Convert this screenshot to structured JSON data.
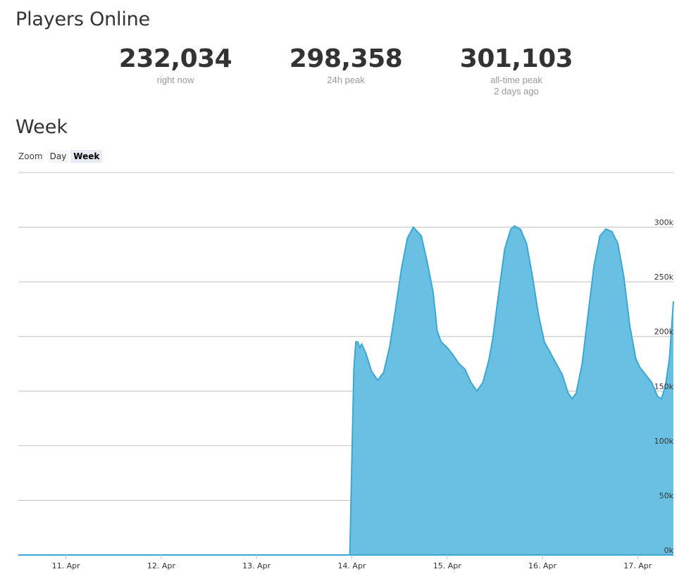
{
  "header": {
    "title": "Players Online"
  },
  "stats": [
    {
      "value": "232,034",
      "label": "right now",
      "sublabel": ""
    },
    {
      "value": "298,358",
      "label": "24h peak",
      "sublabel": ""
    },
    {
      "value": "301,103",
      "label": "all-time peak",
      "sublabel": "2 days ago"
    }
  ],
  "section": {
    "title": "Week"
  },
  "zoom": {
    "label": "Zoom",
    "options": [
      "Day",
      "Week"
    ],
    "selected": "Week"
  },
  "colors": {
    "area": "#6ac0e2",
    "line": "#3aa8d2",
    "grid": "#c0c0c0"
  },
  "chart_data": {
    "type": "area",
    "title": "",
    "xlabel": "",
    "ylabel": "",
    "x_ticks": [
      "11. Apr",
      "12. Apr",
      "13. Apr",
      "14. Apr",
      "15. Apr",
      "16. Apr",
      "17. Apr"
    ],
    "y_ticks": [
      "0k",
      "50k",
      "100k",
      "150k",
      "200k",
      "250k",
      "300k"
    ],
    "ylim": [
      0,
      350000
    ],
    "xlim": [
      "2017-04-10 12:00",
      "2017-04-17 09:00"
    ],
    "grid": true,
    "series": [
      {
        "name": "",
        "points": [
          [
            "2017-04-10 12:00",
            0
          ],
          [
            "2017-04-13 23:30",
            0
          ],
          [
            "2017-04-14 00:30",
            170000
          ],
          [
            "2017-04-14 01:00",
            195000
          ],
          [
            "2017-04-14 01:30",
            195000
          ],
          [
            "2017-04-14 02:00",
            190000
          ],
          [
            "2017-04-14 02:30",
            193000
          ],
          [
            "2017-04-14 03:30",
            185000
          ],
          [
            "2017-04-14 05:00",
            168000
          ],
          [
            "2017-04-14 06:30",
            160000
          ],
          [
            "2017-04-14 08:00",
            167000
          ],
          [
            "2017-04-14 09:30",
            190000
          ],
          [
            "2017-04-14 11:00",
            225000
          ],
          [
            "2017-04-14 12:30",
            262000
          ],
          [
            "2017-04-14 14:00",
            290000
          ],
          [
            "2017-04-14 15:30",
            300000
          ],
          [
            "2017-04-14 16:30",
            296000
          ],
          [
            "2017-04-14 17:30",
            292000
          ],
          [
            "2017-04-14 19:00",
            268000
          ],
          [
            "2017-04-14 20:30",
            240000
          ],
          [
            "2017-04-14 21:30",
            205000
          ],
          [
            "2017-04-14 22:30",
            195000
          ],
          [
            "2017-04-15 00:00",
            190000
          ],
          [
            "2017-04-15 01:30",
            183000
          ],
          [
            "2017-04-15 03:00",
            175000
          ],
          [
            "2017-04-15 04:30",
            170000
          ],
          [
            "2017-04-15 06:00",
            158000
          ],
          [
            "2017-04-15 07:30",
            150000
          ],
          [
            "2017-04-15 09:00",
            158000
          ],
          [
            "2017-04-15 10:30",
            178000
          ],
          [
            "2017-04-15 11:30",
            198000
          ],
          [
            "2017-04-15 13:00",
            240000
          ],
          [
            "2017-04-15 14:30",
            280000
          ],
          [
            "2017-04-15 16:00",
            298000
          ],
          [
            "2017-04-15 17:00",
            301103
          ],
          [
            "2017-04-15 18:30",
            298000
          ],
          [
            "2017-04-15 20:00",
            285000
          ],
          [
            "2017-04-15 21:30",
            255000
          ],
          [
            "2017-04-15 23:00",
            220000
          ],
          [
            "2017-04-16 00:30",
            195000
          ],
          [
            "2017-04-16 02:00",
            185000
          ],
          [
            "2017-04-16 03:30",
            175000
          ],
          [
            "2017-04-16 05:00",
            165000
          ],
          [
            "2017-04-16 06:30",
            148000
          ],
          [
            "2017-04-16 07:30",
            143000
          ],
          [
            "2017-04-16 08:30",
            148000
          ],
          [
            "2017-04-16 10:00",
            175000
          ],
          [
            "2017-04-16 11:30",
            220000
          ],
          [
            "2017-04-16 13:00",
            265000
          ],
          [
            "2017-04-16 14:30",
            292000
          ],
          [
            "2017-04-16 16:00",
            298358
          ],
          [
            "2017-04-16 17:30",
            296000
          ],
          [
            "2017-04-16 19:00",
            285000
          ],
          [
            "2017-04-16 20:30",
            255000
          ],
          [
            "2017-04-16 22:00",
            210000
          ],
          [
            "2017-04-16 23:30",
            180000
          ],
          [
            "2017-04-17 00:30",
            172000
          ],
          [
            "2017-04-17 02:00",
            165000
          ],
          [
            "2017-04-17 03:30",
            158000
          ],
          [
            "2017-04-17 05:00",
            145000
          ],
          [
            "2017-04-17 06:00",
            143000
          ],
          [
            "2017-04-17 07:00",
            155000
          ],
          [
            "2017-04-17 08:00",
            180000
          ],
          [
            "2017-04-17 09:00",
            232034
          ]
        ]
      }
    ]
  }
}
